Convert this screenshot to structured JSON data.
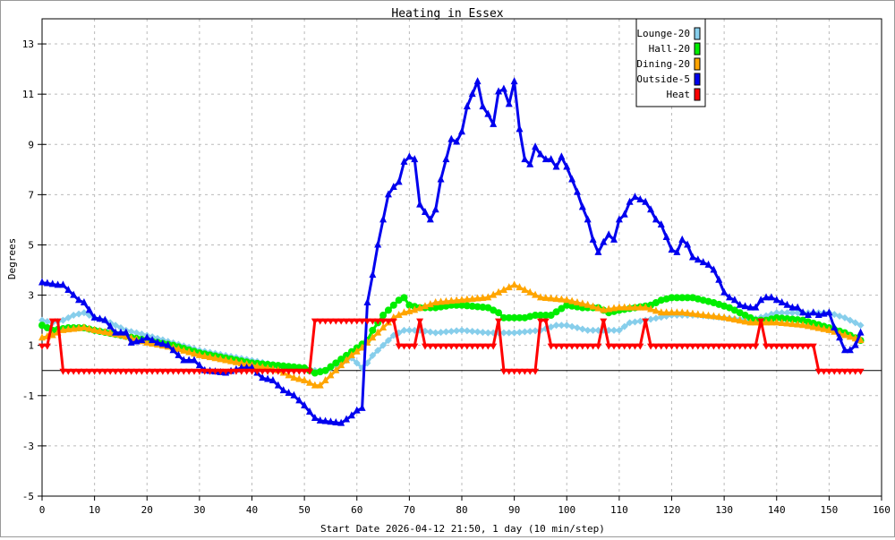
{
  "chart_data": {
    "type": "line",
    "title": "Heating in Essex",
    "xlabel": "Start Date 2026-04-12 21:50, 1 day (10 min/step)",
    "ylabel": "Degrees",
    "xlim": [
      0,
      160
    ],
    "ylim": [
      -5,
      14
    ],
    "xticks": [
      "0",
      "10",
      "20",
      "30",
      "40",
      "50",
      "60",
      "70",
      "80",
      "90",
      "100",
      "110",
      "120",
      "130",
      "140",
      "150",
      "160"
    ],
    "yticks": [
      "-5",
      "-3",
      "-1",
      "1",
      "3",
      "5",
      "7",
      "9",
      "11",
      "13"
    ],
    "grid": true,
    "legend_position": "top-right",
    "series": [
      {
        "name": "Lounge-20",
        "color": "#87ceeb",
        "marker": "diamond",
        "points": [
          [
            0,
            2.0
          ],
          [
            2,
            1.9
          ],
          [
            4,
            2.0
          ],
          [
            6,
            2.2
          ],
          [
            8,
            2.3
          ],
          [
            10,
            2.1
          ],
          [
            12,
            2.0
          ],
          [
            14,
            1.8
          ],
          [
            16,
            1.6
          ],
          [
            20,
            1.4
          ],
          [
            25,
            1.1
          ],
          [
            30,
            0.8
          ],
          [
            35,
            0.6
          ],
          [
            40,
            0.4
          ],
          [
            45,
            0.2
          ],
          [
            50,
            0.1
          ],
          [
            52,
            0.0
          ],
          [
            54,
            0.0
          ],
          [
            56,
            0.2
          ],
          [
            58,
            0.4
          ],
          [
            59,
            0.5
          ],
          [
            60,
            0.3
          ],
          [
            61,
            0.1
          ],
          [
            62,
            0.3
          ],
          [
            63,
            0.6
          ],
          [
            65,
            1.0
          ],
          [
            67,
            1.4
          ],
          [
            69,
            1.6
          ],
          [
            72,
            1.6
          ],
          [
            75,
            1.5
          ],
          [
            80,
            1.6
          ],
          [
            85,
            1.5
          ],
          [
            90,
            1.5
          ],
          [
            95,
            1.6
          ],
          [
            98,
            1.8
          ],
          [
            100,
            1.8
          ],
          [
            104,
            1.6
          ],
          [
            110,
            1.6
          ],
          [
            112,
            1.9
          ],
          [
            115,
            2.0
          ],
          [
            120,
            2.2
          ],
          [
            125,
            2.2
          ],
          [
            130,
            2.1
          ],
          [
            135,
            2.0
          ],
          [
            140,
            2.3
          ],
          [
            145,
            2.3
          ],
          [
            150,
            2.3
          ],
          [
            153,
            2.1
          ],
          [
            156,
            1.8
          ]
        ]
      },
      {
        "name": "Hall-20",
        "color": "#00ee00",
        "marker": "circle",
        "points": [
          [
            0,
            1.8
          ],
          [
            2,
            1.6
          ],
          [
            5,
            1.7
          ],
          [
            8,
            1.7
          ],
          [
            10,
            1.6
          ],
          [
            15,
            1.4
          ],
          [
            20,
            1.2
          ],
          [
            25,
            1.0
          ],
          [
            30,
            0.7
          ],
          [
            35,
            0.5
          ],
          [
            40,
            0.3
          ],
          [
            45,
            0.2
          ],
          [
            50,
            0.1
          ],
          [
            52,
            -0.1
          ],
          [
            54,
            0.0
          ],
          [
            56,
            0.3
          ],
          [
            58,
            0.6
          ],
          [
            60,
            0.9
          ],
          [
            62,
            1.2
          ],
          [
            63,
            1.6
          ],
          [
            65,
            2.2
          ],
          [
            67,
            2.6
          ],
          [
            68,
            2.8
          ],
          [
            69,
            2.9
          ],
          [
            70,
            2.6
          ],
          [
            72,
            2.5
          ],
          [
            75,
            2.5
          ],
          [
            78,
            2.6
          ],
          [
            80,
            2.6
          ],
          [
            85,
            2.5
          ],
          [
            87,
            2.3
          ],
          [
            88,
            2.1
          ],
          [
            92,
            2.1
          ],
          [
            94,
            2.2
          ],
          [
            97,
            2.2
          ],
          [
            100,
            2.6
          ],
          [
            103,
            2.5
          ],
          [
            106,
            2.5
          ],
          [
            108,
            2.3
          ],
          [
            110,
            2.4
          ],
          [
            113,
            2.5
          ],
          [
            116,
            2.6
          ],
          [
            118,
            2.8
          ],
          [
            120,
            2.9
          ],
          [
            124,
            2.9
          ],
          [
            128,
            2.7
          ],
          [
            131,
            2.5
          ],
          [
            134,
            2.2
          ],
          [
            136,
            2.0
          ],
          [
            138,
            2.0
          ],
          [
            140,
            2.1
          ],
          [
            145,
            2.0
          ],
          [
            150,
            1.7
          ],
          [
            153,
            1.5
          ],
          [
            156,
            1.2
          ]
        ]
      },
      {
        "name": "Dining-20",
        "color": "#ffa500",
        "marker": "triangle",
        "points": [
          [
            0,
            1.3
          ],
          [
            2,
            1.4
          ],
          [
            4,
            1.6
          ],
          [
            8,
            1.7
          ],
          [
            10,
            1.6
          ],
          [
            15,
            1.4
          ],
          [
            20,
            1.1
          ],
          [
            25,
            0.9
          ],
          [
            30,
            0.6
          ],
          [
            35,
            0.4
          ],
          [
            40,
            0.2
          ],
          [
            45,
            0.0
          ],
          [
            48,
            -0.3
          ],
          [
            50,
            -0.4
          ],
          [
            52,
            -0.6
          ],
          [
            53,
            -0.6
          ],
          [
            55,
            -0.2
          ],
          [
            57,
            0.2
          ],
          [
            59,
            0.6
          ],
          [
            61,
            0.9
          ],
          [
            63,
            1.3
          ],
          [
            65,
            1.7
          ],
          [
            67,
            2.1
          ],
          [
            69,
            2.3
          ],
          [
            71,
            2.4
          ],
          [
            75,
            2.7
          ],
          [
            80,
            2.8
          ],
          [
            85,
            2.9
          ],
          [
            88,
            3.2
          ],
          [
            90,
            3.4
          ],
          [
            92,
            3.2
          ],
          [
            95,
            2.9
          ],
          [
            100,
            2.8
          ],
          [
            104,
            2.6
          ],
          [
            107,
            2.4
          ],
          [
            110,
            2.5
          ],
          [
            115,
            2.5
          ],
          [
            118,
            2.3
          ],
          [
            122,
            2.3
          ],
          [
            126,
            2.2
          ],
          [
            130,
            2.1
          ],
          [
            135,
            1.9
          ],
          [
            140,
            1.9
          ],
          [
            145,
            1.8
          ],
          [
            150,
            1.6
          ],
          [
            153,
            1.4
          ],
          [
            156,
            1.2
          ]
        ]
      },
      {
        "name": "Outside-5",
        "color": "#0000ee",
        "marker": "triangle",
        "points": [
          [
            0,
            3.5
          ],
          [
            3,
            3.4
          ],
          [
            4,
            3.4
          ],
          [
            5,
            3.2
          ],
          [
            7,
            2.8
          ],
          [
            8,
            2.7
          ],
          [
            10,
            2.1
          ],
          [
            12,
            2.0
          ],
          [
            14,
            1.5
          ],
          [
            16,
            1.5
          ],
          [
            17,
            1.1
          ],
          [
            19,
            1.2
          ],
          [
            20,
            1.3
          ],
          [
            22,
            1.1
          ],
          [
            24,
            1.0
          ],
          [
            26,
            0.6
          ],
          [
            27,
            0.4
          ],
          [
            29,
            0.4
          ],
          [
            31,
            0.0
          ],
          [
            35,
            -0.1
          ],
          [
            38,
            0.1
          ],
          [
            40,
            0.1
          ],
          [
            42,
            -0.3
          ],
          [
            44,
            -0.4
          ],
          [
            46,
            -0.8
          ],
          [
            48,
            -1.0
          ],
          [
            50,
            -1.4
          ],
          [
            52,
            -1.9
          ],
          [
            53,
            -2.0
          ],
          [
            57,
            -2.1
          ],
          [
            59,
            -1.8
          ],
          [
            60,
            -1.6
          ],
          [
            61,
            -1.5
          ],
          [
            62,
            2.7
          ],
          [
            63,
            3.8
          ],
          [
            64,
            5.0
          ],
          [
            65,
            6.0
          ],
          [
            66,
            7.0
          ],
          [
            67,
            7.3
          ],
          [
            68,
            7.5
          ],
          [
            69,
            8.3
          ],
          [
            70,
            8.5
          ],
          [
            71,
            8.4
          ],
          [
            72,
            6.6
          ],
          [
            73,
            6.3
          ],
          [
            74,
            6.0
          ],
          [
            75,
            6.4
          ],
          [
            76,
            7.6
          ],
          [
            77,
            8.4
          ],
          [
            78,
            9.2
          ],
          [
            79,
            9.1
          ],
          [
            80,
            9.5
          ],
          [
            81,
            10.5
          ],
          [
            82,
            11.0
          ],
          [
            83,
            11.5
          ],
          [
            84,
            10.5
          ],
          [
            85,
            10.2
          ],
          [
            86,
            9.8
          ],
          [
            87,
            11.1
          ],
          [
            88,
            11.2
          ],
          [
            89,
            10.6
          ],
          [
            90,
            11.5
          ],
          [
            91,
            9.6
          ],
          [
            92,
            8.4
          ],
          [
            93,
            8.2
          ],
          [
            94,
            8.9
          ],
          [
            95,
            8.6
          ],
          [
            96,
            8.4
          ],
          [
            97,
            8.4
          ],
          [
            98,
            8.1
          ],
          [
            99,
            8.5
          ],
          [
            100,
            8.1
          ],
          [
            101,
            7.6
          ],
          [
            102,
            7.1
          ],
          [
            103,
            6.5
          ],
          [
            104,
            6.0
          ],
          [
            105,
            5.2
          ],
          [
            106,
            4.7
          ],
          [
            107,
            5.1
          ],
          [
            108,
            5.4
          ],
          [
            109,
            5.2
          ],
          [
            110,
            6.0
          ],
          [
            111,
            6.2
          ],
          [
            112,
            6.7
          ],
          [
            113,
            6.9
          ],
          [
            114,
            6.8
          ],
          [
            115,
            6.7
          ],
          [
            116,
            6.4
          ],
          [
            117,
            6.0
          ],
          [
            118,
            5.8
          ],
          [
            119,
            5.3
          ],
          [
            120,
            4.8
          ],
          [
            121,
            4.7
          ],
          [
            122,
            5.2
          ],
          [
            123,
            5.0
          ],
          [
            124,
            4.5
          ],
          [
            125,
            4.4
          ],
          [
            126,
            4.3
          ],
          [
            127,
            4.2
          ],
          [
            128,
            4.0
          ],
          [
            129,
            3.6
          ],
          [
            130,
            3.1
          ],
          [
            131,
            2.9
          ],
          [
            132,
            2.8
          ],
          [
            133,
            2.6
          ],
          [
            135,
            2.5
          ],
          [
            136,
            2.5
          ],
          [
            137,
            2.8
          ],
          [
            138,
            2.9
          ],
          [
            139,
            2.9
          ],
          [
            140,
            2.8
          ],
          [
            141,
            2.7
          ],
          [
            142,
            2.6
          ],
          [
            143,
            2.5
          ],
          [
            144,
            2.5
          ],
          [
            145,
            2.3
          ],
          [
            146,
            2.2
          ],
          [
            147,
            2.3
          ],
          [
            148,
            2.2
          ],
          [
            150,
            2.3
          ],
          [
            151,
            1.7
          ],
          [
            152,
            1.3
          ],
          [
            153,
            0.8
          ],
          [
            154,
            0.8
          ],
          [
            155,
            1.0
          ],
          [
            156,
            1.5
          ]
        ]
      },
      {
        "name": "Heat",
        "color": "#ff0000",
        "marker": "down-triangle",
        "points": [
          [
            0,
            1
          ],
          [
            1,
            1
          ],
          [
            2,
            2
          ],
          [
            3,
            2
          ],
          [
            4,
            0
          ],
          [
            51,
            0
          ],
          [
            52,
            2
          ],
          [
            67,
            2
          ],
          [
            68,
            1
          ],
          [
            71,
            1
          ],
          [
            72,
            2
          ],
          [
            73,
            1
          ],
          [
            86,
            1
          ],
          [
            87,
            2
          ],
          [
            88,
            0
          ],
          [
            94,
            0
          ],
          [
            95,
            2
          ],
          [
            96,
            2
          ],
          [
            97,
            1
          ],
          [
            106,
            1
          ],
          [
            107,
            2
          ],
          [
            108,
            1
          ],
          [
            114,
            1
          ],
          [
            115,
            2
          ],
          [
            116,
            1
          ],
          [
            136,
            1
          ],
          [
            137,
            2
          ],
          [
            138,
            1
          ],
          [
            147,
            1
          ],
          [
            148,
            0
          ],
          [
            156,
            0
          ]
        ]
      }
    ]
  }
}
